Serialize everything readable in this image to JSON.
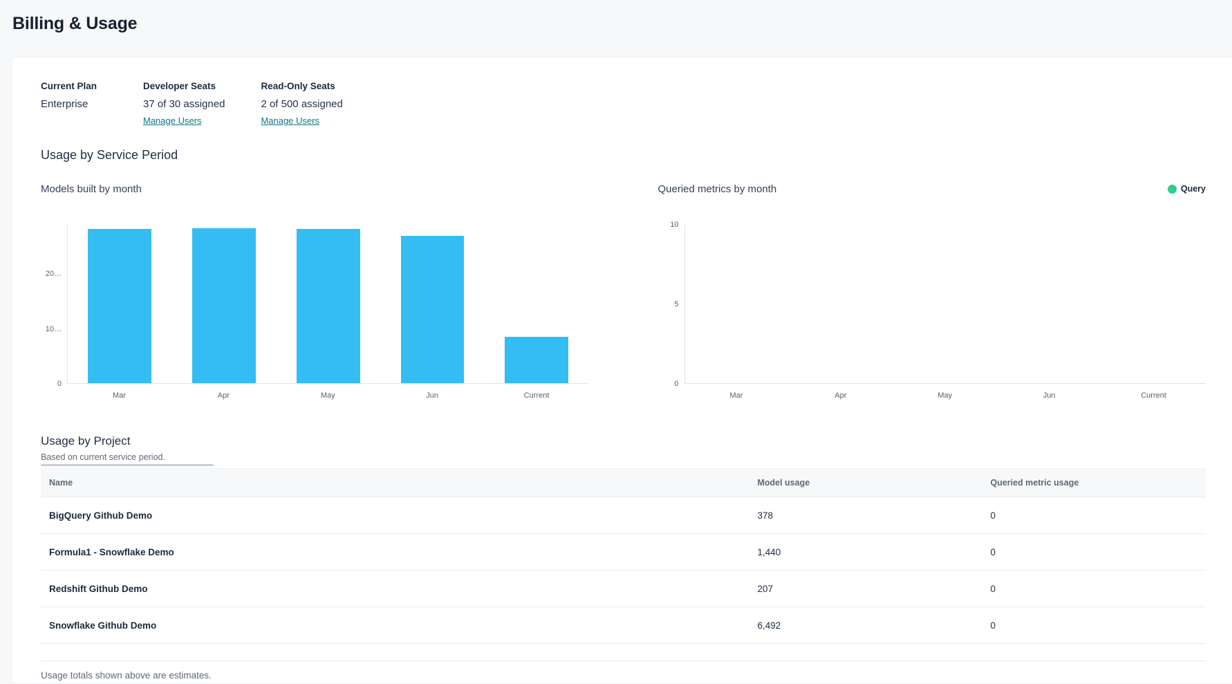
{
  "page": {
    "title": "Billing & Usage"
  },
  "plan": {
    "current_plan_label": "Current Plan",
    "current_plan_value": "Enterprise",
    "developer_seats_label": "Developer Seats",
    "developer_seats_value": "37 of 30 assigned",
    "developer_manage_link": "Manage Users",
    "readonly_seats_label": "Read-Only Seats",
    "readonly_seats_value": "2 of 500 assigned",
    "readonly_manage_link": "Manage Users"
  },
  "usage_section": {
    "title": "Usage by Service Period"
  },
  "chart_data": [
    {
      "type": "bar",
      "title": "Models built by month",
      "categories": [
        "Mar",
        "Apr",
        "May",
        "Jun",
        "Current"
      ],
      "values": [
        28200,
        28400,
        28300,
        27000,
        8500
      ],
      "ylim": [
        0,
        29000
      ],
      "yticks": [
        {
          "label": "0",
          "value": 0
        },
        {
          "label": "10…",
          "value": 10000
        },
        {
          "label": "20…",
          "value": 20000
        }
      ],
      "bar_color": "#33bdf2",
      "grid": false,
      "legend": null
    },
    {
      "type": "bar",
      "title": "Queried metrics by month",
      "categories": [
        "Mar",
        "Apr",
        "May",
        "Jun",
        "Current"
      ],
      "values": [
        0,
        0,
        0,
        0,
        0
      ],
      "ylim": [
        0,
        10
      ],
      "yticks": [
        {
          "label": "0",
          "value": 0
        },
        {
          "label": "5",
          "value": 5
        },
        {
          "label": "10",
          "value": 10
        }
      ],
      "bar_color": "#2ecc8f",
      "grid": false,
      "legend": {
        "label": "Query",
        "color": "#2ecc8f",
        "position": "top-right"
      }
    }
  ],
  "project_table": {
    "title": "Usage by Project",
    "subtitle": "Based on current service period.",
    "columns": [
      "Name",
      "Model usage",
      "Queried metric usage"
    ],
    "rows": [
      {
        "name": "BigQuery Github Demo",
        "model_usage": "378",
        "queried_usage": "0"
      },
      {
        "name": "Formula1 - Snowflake Demo",
        "model_usage": "1,440",
        "queried_usage": "0"
      },
      {
        "name": "Redshift Github Demo",
        "model_usage": "207",
        "queried_usage": "0"
      },
      {
        "name": "Snowflake Github Demo",
        "model_usage": "6,492",
        "queried_usage": "0"
      }
    ],
    "footnote": "Usage totals shown above are estimates."
  },
  "colors": {
    "bar_blue": "#33bdf2",
    "legend_green": "#2ecc8f",
    "link_teal": "#0d7680",
    "heading_navy": "#15202f",
    "page_bg": "#f7f8f9"
  }
}
